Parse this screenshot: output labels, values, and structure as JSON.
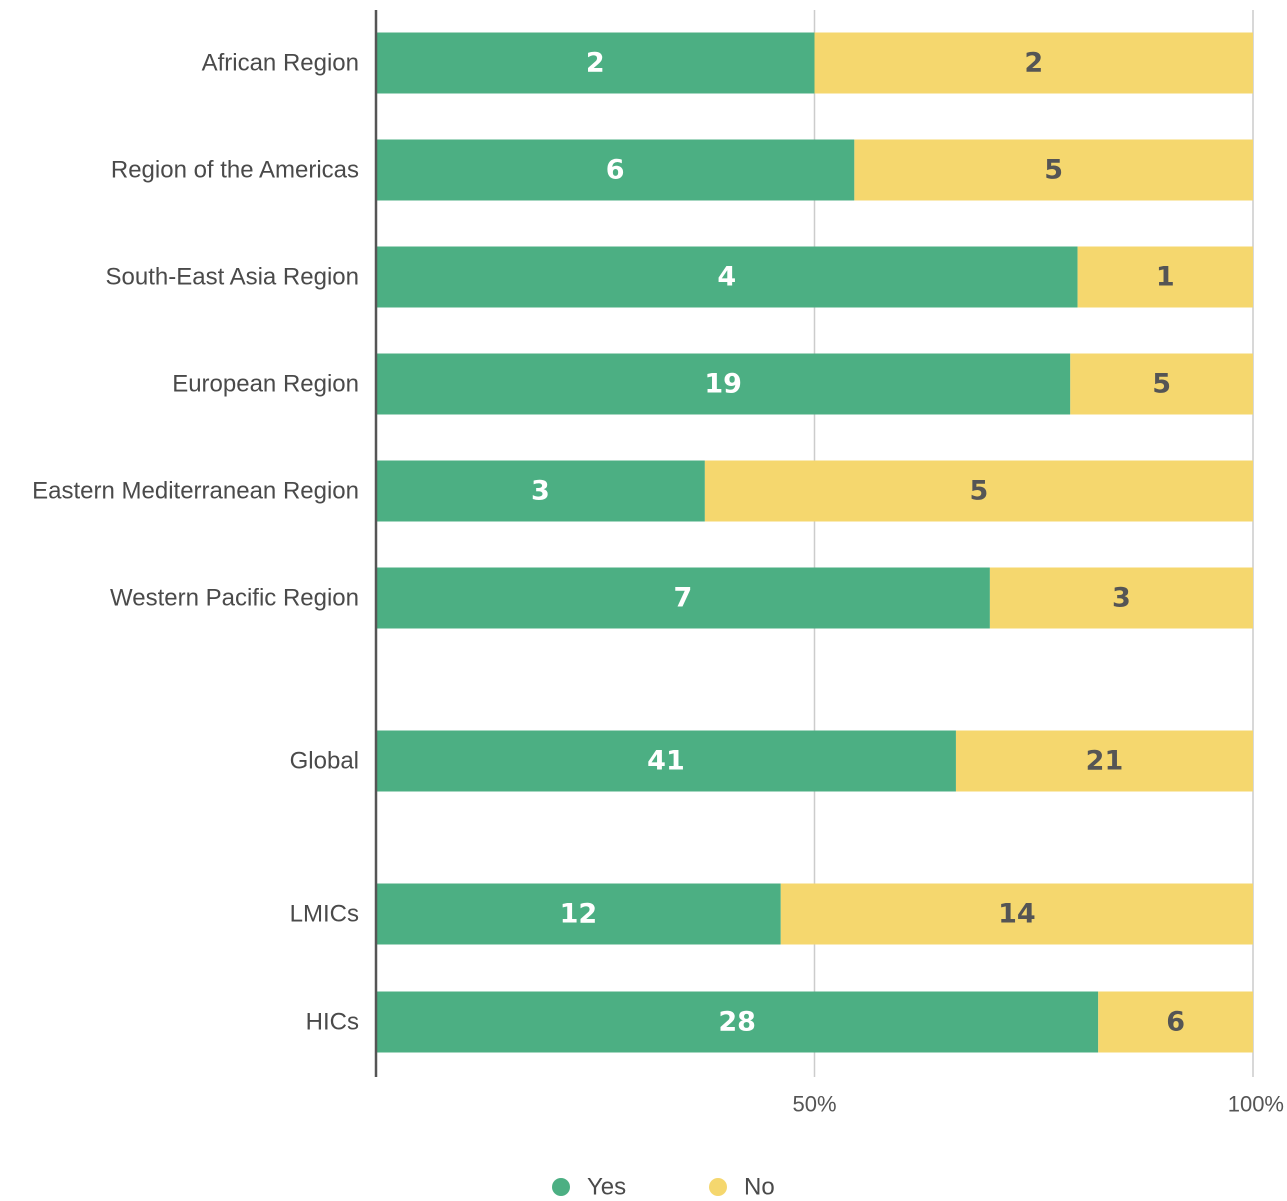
{
  "chart_data": {
    "type": "bar",
    "orientation": "horizontal",
    "stacked": true,
    "normalized_percent": true,
    "categories": [
      "African Region",
      "Region of the Americas",
      "South-East Asia Region",
      "European Region",
      "Eastern Mediterranean Region",
      "Western Pacific Region",
      "Global",
      "LMICs",
      "HICs"
    ],
    "series": [
      {
        "name": "Yes",
        "color": "#4caf83",
        "label_color": "#ffffff",
        "values": [
          2,
          6,
          4,
          19,
          3,
          7,
          41,
          12,
          28
        ]
      },
      {
        "name": "No",
        "color": "#f5d76e",
        "label_color": "#555555",
        "values": [
          2,
          5,
          1,
          5,
          5,
          3,
          21,
          14,
          6
        ]
      }
    ],
    "xticks": [
      "50%",
      "100%"
    ],
    "xlim": [
      0,
      100
    ],
    "grid": true,
    "legend_position": "bottom-center"
  }
}
